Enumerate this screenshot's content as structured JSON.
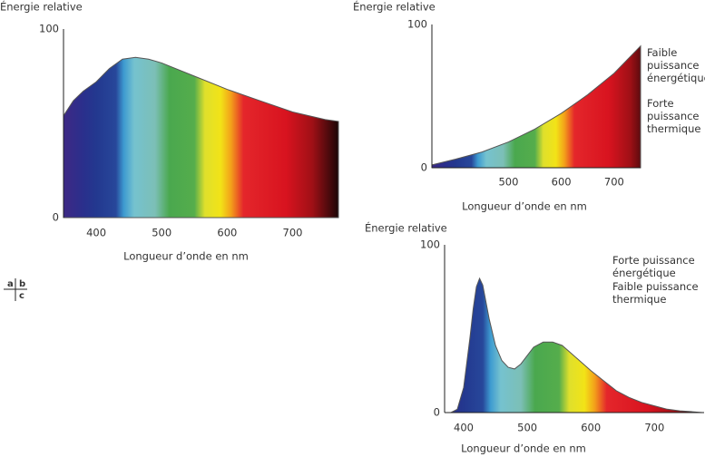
{
  "chart_data": [
    {
      "type": "area",
      "panel": "a",
      "ylabel": "Énergie relative",
      "xlabel": "Longueur d’onde en nm",
      "x": [
        350,
        365,
        380,
        400,
        420,
        440,
        460,
        480,
        500,
        550,
        600,
        650,
        700,
        750,
        770
      ],
      "values": [
        54,
        62,
        67,
        72,
        79,
        84,
        85,
        84,
        82,
        75,
        68,
        62,
        56,
        52,
        51
      ],
      "xlim": [
        350,
        770
      ],
      "ylim": [
        0,
        100
      ],
      "xticks": [
        400,
        500,
        600,
        700
      ],
      "yticks": [
        0,
        100
      ]
    },
    {
      "type": "area",
      "panel": "b",
      "ylabel": "Énergie relative",
      "xlabel": "Longueur d’onde en nm",
      "x": [
        355,
        400,
        450,
        500,
        550,
        600,
        650,
        700,
        750
      ],
      "values": [
        2,
        6,
        11,
        18,
        27,
        38,
        51,
        66,
        85
      ],
      "xlim": [
        355,
        750
      ],
      "ylim": [
        0,
        100
      ],
      "xticks": [
        500,
        600,
        700
      ],
      "yticks": [
        0,
        100
      ],
      "annotations": [
        "Faible puissance énergétique",
        "Forte puissance thermique"
      ]
    },
    {
      "type": "area",
      "panel": "c",
      "ylabel": "Énergie relative",
      "xlabel": "Longueur d’onde en nm",
      "x": [
        380,
        390,
        400,
        410,
        415,
        420,
        425,
        430,
        435,
        440,
        450,
        460,
        470,
        480,
        490,
        500,
        510,
        525,
        540,
        555,
        570,
        585,
        600,
        620,
        640,
        660,
        680,
        700,
        720,
        740,
        760,
        775
      ],
      "values": [
        0,
        2,
        15,
        45,
        62,
        75,
        80,
        76,
        66,
        56,
        40,
        31,
        27,
        26,
        29,
        34,
        39,
        42,
        42,
        40,
        35,
        30,
        25,
        19,
        13,
        9,
        6,
        4,
        2,
        1,
        0.5,
        0
      ],
      "xlim": [
        370,
        778
      ],
      "ylim": [
        0,
        100
      ],
      "xticks": [
        400,
        500,
        600,
        700
      ],
      "yticks": [
        0,
        100
      ],
      "annotations": [
        "Forte puissance énergétique",
        "Faible puissance thermique"
      ]
    }
  ]
}
